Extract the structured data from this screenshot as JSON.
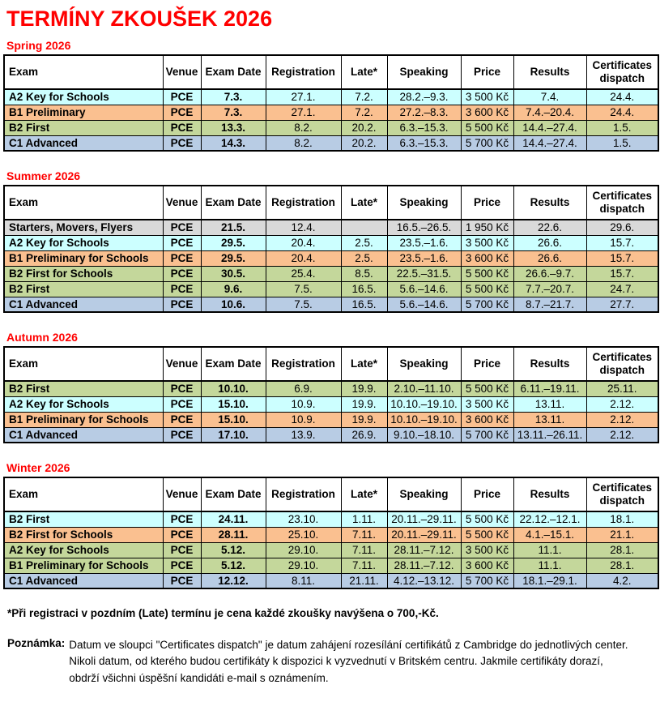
{
  "page": {
    "title": "TERMÍNY ZKOUŠEK 2026"
  },
  "colors": {
    "heading_red": "#ff0000",
    "row_cyan": "#ccffff",
    "row_peach": "#fac090",
    "row_green": "#c4d79b",
    "row_blue": "#b8cce4",
    "row_gray": "#d9d9d9"
  },
  "columns": [
    "Exam",
    "Venue",
    "Exam Date",
    "Registration",
    "Late*",
    "Speaking",
    "Price",
    "Results",
    "Certificates dispatch"
  ],
  "sections": [
    {
      "heading": "Spring 2026",
      "rows": [
        {
          "exam": "A2 Key for Schools",
          "venue": "PCE",
          "exam_date": "7.3.",
          "registration": "27.1.",
          "late": "7.2.",
          "speaking": "28.2.–9.3.",
          "price": "3 500 Kč",
          "results": "7.4.",
          "certificates": "24.4.",
          "color": "cyan"
        },
        {
          "exam": "B1 Preliminary",
          "venue": "PCE",
          "exam_date": "7.3.",
          "registration": "27.1.",
          "late": "7.2.",
          "speaking": "27.2.–8.3.",
          "price": "3 600 Kč",
          "results": "7.4.–20.4.",
          "certificates": "24.4.",
          "color": "peach"
        },
        {
          "exam": "B2 First",
          "venue": "PCE",
          "exam_date": "13.3.",
          "registration": "8.2.",
          "late": "20.2.",
          "speaking": "6.3.–15.3.",
          "price": "5 500 Kč",
          "results": "14.4.–27.4.",
          "certificates": "1.5.",
          "color": "green"
        },
        {
          "exam": "C1 Advanced",
          "venue": "PCE",
          "exam_date": "14.3.",
          "registration": "8.2.",
          "late": "20.2.",
          "speaking": "6.3.–15.3.",
          "price": "5 700 Kč",
          "results": "14.4.–27.4.",
          "certificates": "1.5.",
          "color": "blue"
        }
      ]
    },
    {
      "heading": "Summer 2026",
      "rows": [
        {
          "exam": "Starters, Movers, Flyers",
          "venue": "PCE",
          "exam_date": "21.5.",
          "registration": "12.4.",
          "late": "",
          "speaking": "16.5.–26.5.",
          "price": "1 950 Kč",
          "results": "22.6.",
          "certificates": "29.6.",
          "color": "gray"
        },
        {
          "exam": "A2 Key for Schools",
          "venue": "PCE",
          "exam_date": "29.5.",
          "registration": "20.4.",
          "late": "2.5.",
          "speaking": "23.5.–1.6.",
          "price": "3 500 Kč",
          "results": "26.6.",
          "certificates": "15.7.",
          "color": "cyan"
        },
        {
          "exam": "B1 Preliminary for Schools",
          "venue": "PCE",
          "exam_date": "29.5.",
          "registration": "20.4.",
          "late": "2.5.",
          "speaking": "23.5.–1.6.",
          "price": "3 600 Kč",
          "results": "26.6.",
          "certificates": "15.7.",
          "color": "peach"
        },
        {
          "exam": "B2 First for Schools",
          "venue": "PCE",
          "exam_date": "30.5.",
          "registration": "25.4.",
          "late": "8.5.",
          "speaking": "22.5.–31.5.",
          "price": "5 500 Kč",
          "results": "26.6.–9.7.",
          "certificates": "15.7.",
          "color": "green"
        },
        {
          "exam": "B2 First",
          "venue": "PCE",
          "exam_date": "9.6.",
          "registration": "7.5.",
          "late": "16.5.",
          "speaking": "5.6.–14.6.",
          "price": "5 500 Kč",
          "results": "7.7.–20.7.",
          "certificates": "24.7.",
          "color": "green"
        },
        {
          "exam": "C1 Advanced",
          "venue": "PCE",
          "exam_date": "10.6.",
          "registration": "7.5.",
          "late": "16.5.",
          "speaking": "5.6.–14.6.",
          "price": "5 700 Kč",
          "results": "8.7.–21.7.",
          "certificates": "27.7.",
          "color": "blue"
        }
      ]
    },
    {
      "heading": "Autumn 2026",
      "rows": [
        {
          "exam": "B2 First",
          "venue": "PCE",
          "exam_date": "10.10.",
          "registration": "6.9.",
          "late": "19.9.",
          "speaking": "2.10.–11.10.",
          "price": "5 500 Kč",
          "results": "6.11.–19.11.",
          "certificates": "25.11.",
          "color": "green"
        },
        {
          "exam": "A2 Key for Schools",
          "venue": "PCE",
          "exam_date": "15.10.",
          "registration": "10.9.",
          "late": "19.9.",
          "speaking": "10.10.–19.10.",
          "price": "3 500 Kč",
          "results": "13.11.",
          "certificates": "2.12.",
          "color": "cyan"
        },
        {
          "exam": "B1 Preliminary for Schools",
          "venue": "PCE",
          "exam_date": "15.10.",
          "registration": "10.9.",
          "late": "19.9.",
          "speaking": "10.10.–19.10.",
          "price": "3 600 Kč",
          "results": "13.11.",
          "certificates": "2.12.",
          "color": "peach"
        },
        {
          "exam": "C1 Advanced",
          "venue": "PCE",
          "exam_date": "17.10.",
          "registration": "13.9.",
          "late": "26.9.",
          "speaking": "9.10.–18.10.",
          "price": "5 700 Kč",
          "results": "13.11.–26.11.",
          "certificates": "2.12.",
          "color": "blue"
        }
      ]
    },
    {
      "heading": "Winter 2026",
      "rows": [
        {
          "exam": "B2 First",
          "venue": "PCE",
          "exam_date": "24.11.",
          "registration": "23.10.",
          "late": "1.11.",
          "speaking": "20.11.–29.11.",
          "price": "5 500 Kč",
          "results": "22.12.–12.1.",
          "certificates": "18.1.",
          "color": "cyan"
        },
        {
          "exam": "B2 First for Schools",
          "venue": "PCE",
          "exam_date": "28.11.",
          "registration": "25.10.",
          "late": "7.11.",
          "speaking": "20.11.–29.11.",
          "price": "5 500 Kč",
          "results": "4.1.–15.1.",
          "certificates": "21.1.",
          "color": "peach"
        },
        {
          "exam": "A2 Key for Schools",
          "venue": "PCE",
          "exam_date": "5.12.",
          "registration": "29.10.",
          "late": "7.11.",
          "speaking": "28.11.–7.12.",
          "price": "3 500 Kč",
          "results": "11.1.",
          "certificates": "28.1.",
          "color": "green"
        },
        {
          "exam": "B1 Preliminary for Schools",
          "venue": "PCE",
          "exam_date": "5.12.",
          "registration": "29.10.",
          "late": "7.11.",
          "speaking": "28.11.–7.12.",
          "price": "3 600 Kč",
          "results": "11.1.",
          "certificates": "28.1.",
          "color": "green"
        },
        {
          "exam": "C1 Advanced",
          "venue": "PCE",
          "exam_date": "12.12.",
          "registration": "8.11.",
          "late": "21.11.",
          "speaking": "4.12.–13.12.",
          "price": "5 700 Kč",
          "results": "18.1.–29.1.",
          "certificates": "4.2.",
          "color": "blue"
        }
      ]
    }
  ],
  "footnotes": {
    "late_note": "*Při registraci v pozdním (Late) termínu je cena každé zkoušky navýšena o 700,-Kč.",
    "note_label": "Poznámka:",
    "note_lines": [
      "Datum ve sloupci \"Certificates dispatch\" je datum zahájení rozesílání certifikátů z Cambridge do jednotlivých center.",
      "Nikoli datum, od kterého budou certifikáty k dispozici k vyzvednutí v Britském centru. Jakmile certifikáty dorazí,",
      "obdrží všichni úspěšní kandidáti e-mail s oznámením."
    ]
  }
}
